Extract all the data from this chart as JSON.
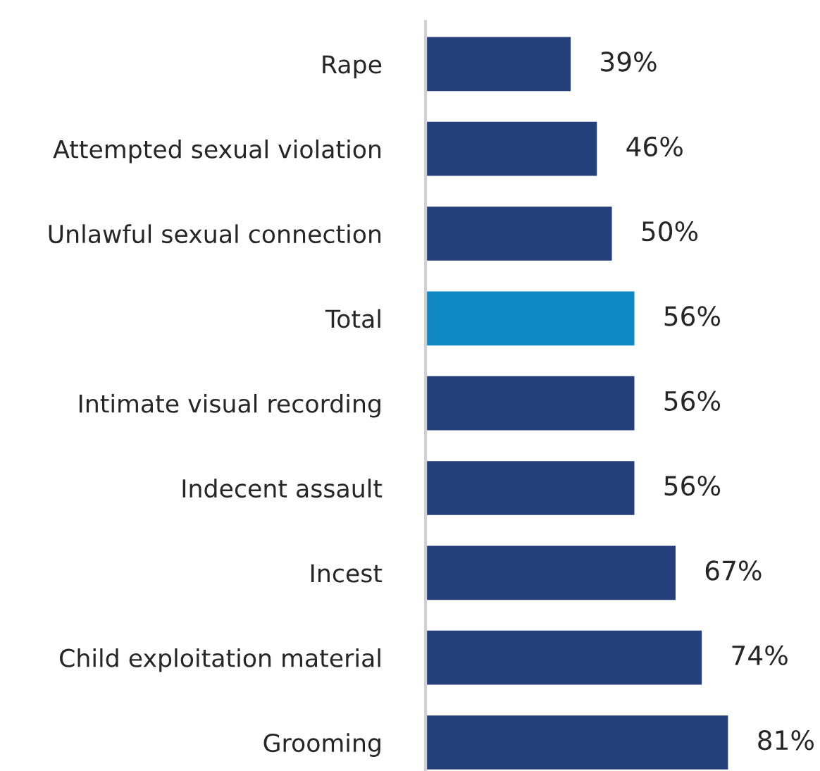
{
  "chart_data": {
    "type": "bar",
    "orientation": "horizontal",
    "categories": [
      "Rape",
      "Attempted sexual violation",
      "Unlawful sexual connection",
      "Total",
      "Intimate visual recording",
      "Indecent assault",
      "Incest",
      "Child exploitation material",
      "Grooming"
    ],
    "values": [
      39,
      46,
      50,
      56,
      56,
      56,
      67,
      74,
      81
    ],
    "colors": [
      "#253f7a",
      "#253f7a",
      "#253f7a",
      "#0f88c4",
      "#253f7a",
      "#253f7a",
      "#253f7a",
      "#253f7a",
      "#253f7a"
    ],
    "value_labels": [
      "39%",
      "46%",
      "50%",
      "56%",
      "56%",
      "56%",
      "67%",
      "74%",
      "81%"
    ],
    "grid": false,
    "legend": false
  }
}
